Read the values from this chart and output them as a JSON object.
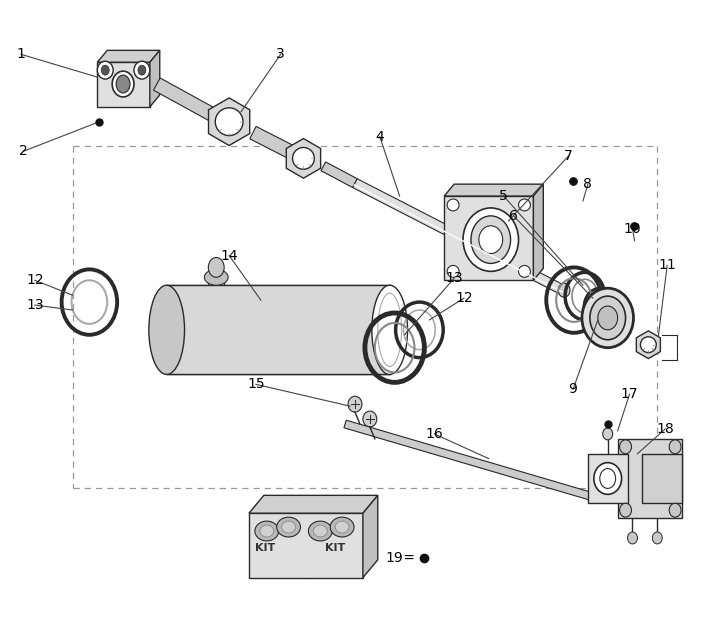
{
  "bg_color": "#ffffff",
  "fig_width": 7.09,
  "fig_height": 6.23,
  "dpi": 100,
  "stroke": "#2a2a2a",
  "light_fill": "#e8e8e8",
  "mid_fill": "#d0d0d0",
  "dark_fill": "#b0b0b0",
  "dash_color": "#999999",
  "label_color": "#000000",
  "dot_color": "#111111",
  "line_color": "#444444"
}
